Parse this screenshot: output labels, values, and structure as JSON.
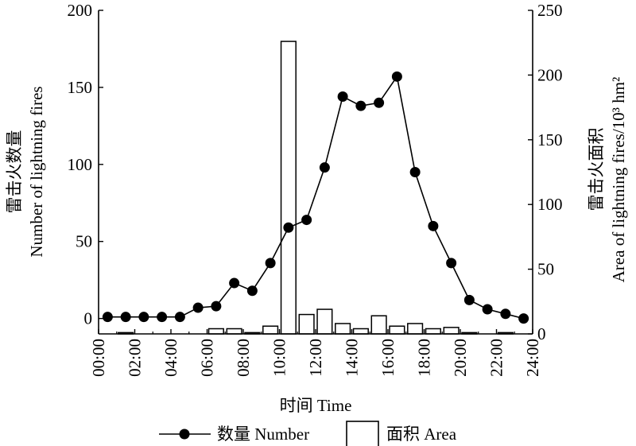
{
  "chart_data": {
    "type": "bar+line",
    "xlabel": "时间 Time",
    "y_left_label_lines": [
      "雷击火数量",
      "Number of lightning fires"
    ],
    "y_right_label_lines": [
      "雷击火面积",
      "Area of lightning fires/10³ hm²"
    ],
    "x_ticks": [
      "00:00",
      "02:00",
      "04:00",
      "06:00",
      "08:00",
      "10:00",
      "12:00",
      "14:00",
      "16:00",
      "18:00",
      "20:00",
      "22:00",
      "24:00"
    ],
    "x_range": [
      0,
      24
    ],
    "y_left_ticks": [
      "0",
      "50",
      "100",
      "150",
      "200"
    ],
    "y_left_range": [
      -10,
      200
    ],
    "y_right_ticks": [
      "0",
      "50",
      "100",
      "150",
      "200",
      "250"
    ],
    "y_right_range": [
      0,
      250
    ],
    "series": [
      {
        "name": "数量 Number",
        "type": "line",
        "axis": "left",
        "x": [
          0.5,
          1.5,
          2.5,
          3.5,
          4.5,
          5.5,
          6.5,
          7.5,
          8.5,
          9.5,
          10.5,
          11.5,
          12.5,
          13.5,
          14.5,
          15.5,
          16.5,
          17.5,
          18.5,
          19.5,
          20.5,
          21.5,
          22.5,
          23.5
        ],
        "values": [
          1,
          1,
          1,
          1,
          1,
          7,
          8,
          23,
          18,
          36,
          59,
          64,
          98,
          144,
          138,
          140,
          157,
          95,
          60,
          36,
          12,
          6,
          3,
          0
        ]
      },
      {
        "name": "面积 Area",
        "type": "bar",
        "axis": "right",
        "x": [
          0.5,
          1.5,
          2.5,
          3.5,
          4.5,
          5.5,
          6.5,
          7.5,
          8.5,
          9.5,
          10.5,
          11.5,
          12.5,
          13.5,
          14.5,
          15.5,
          16.5,
          17.5,
          18.5,
          19.5,
          20.5,
          21.5,
          22.5,
          23.5
        ],
        "values": [
          0,
          1,
          0,
          0,
          0,
          0,
          4,
          4,
          1,
          6,
          226,
          15,
          19,
          8,
          4,
          14,
          6,
          8,
          4,
          5,
          1,
          0,
          1,
          0
        ]
      }
    ],
    "legend": {
      "position": "bottom",
      "items": [
        {
          "label": "数量 Number",
          "marker": "line-dot"
        },
        {
          "label": "面积 Area",
          "marker": "box"
        }
      ]
    },
    "grid": false,
    "colors": {
      "line": "#000000",
      "bar_fill": "#ffffff",
      "bar_stroke": "#000000"
    }
  }
}
